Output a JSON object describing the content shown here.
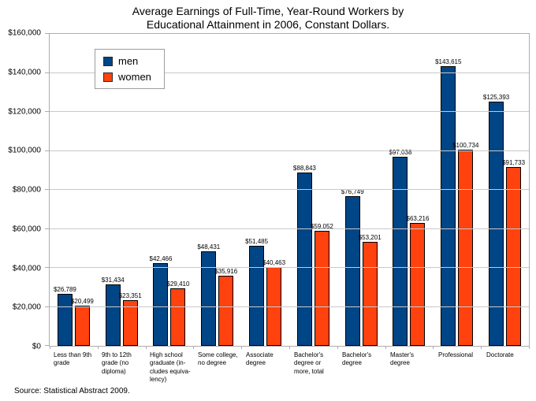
{
  "chart_data": {
    "type": "bar",
    "title": "Average Earnings of Full-Time, Year-Round Workers by\nEducational Attainment in 2006, Constant Dollars.",
    "source": "Source: Statistical Abstract 2009.",
    "categories": [
      "Less than 9th\ngrade",
      "9th to 12th\ngrade (no\ndiploma)",
      "High school\ngraduate (in-\ncludes equiva-\nlency)",
      "Some college,\nno degree",
      "Associate\ndegree",
      "Bachelor's\ndegree or\nmore, total",
      "Bachelor's\ndegree",
      "Master's\ndegree",
      "Professional",
      "Doctorate"
    ],
    "series": [
      {
        "name": "men",
        "color": "#004586",
        "values": [
          26789,
          31434,
          42466,
          48431,
          51485,
          88843,
          76749,
          97038,
          143615,
          125393
        ],
        "labels": [
          "$26,789",
          "$31,434",
          "$42,466",
          "$48,431",
          "$51,485",
          "$88,843",
          "$76,749",
          "$97,038",
          "$143,615",
          "$125,393"
        ]
      },
      {
        "name": "women",
        "color": "#ff420e",
        "values": [
          20499,
          23351,
          29410,
          35916,
          40463,
          59052,
          53201,
          63216,
          100734,
          91733
        ],
        "labels": [
          "$20,499",
          "$23,351",
          "$29,410",
          "$35,916",
          "$40,463",
          "$59,052",
          "$53,201",
          "$63,216",
          "$100,734",
          "$91,733"
        ]
      }
    ],
    "xlabel": "",
    "ylabel": "",
    "ylim": [
      0,
      160000
    ],
    "ytick_step": 20000,
    "ytick_labels": [
      "$0",
      "$20,000",
      "$40,000",
      "$60,000",
      "$80,000",
      "$100,000",
      "$120,000",
      "$140,000",
      "$160,000"
    ],
    "grid": true,
    "legend_position": "top-left-inside",
    "bar_border_color": "#000000",
    "gridline_color": "#c9c9c9",
    "axis_color": "#adadad"
  }
}
